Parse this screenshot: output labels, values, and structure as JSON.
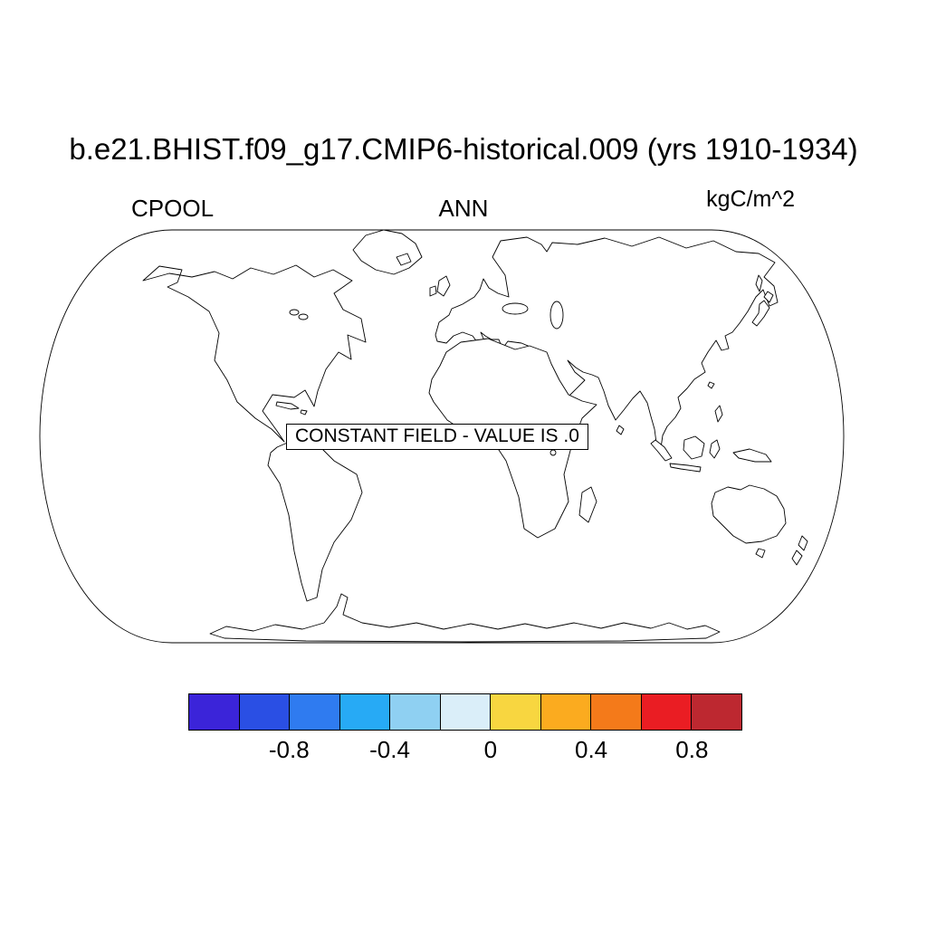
{
  "header": {
    "title": "b.e21.BHIST.f09_g17.CMIP6-historical.009 (yrs 1910-1934)",
    "variable_label": "CPOOL",
    "season_label": "ANN",
    "units_label": "kgC/m^2"
  },
  "map": {
    "annotation": "CONSTANT FIELD - VALUE IS .0"
  },
  "chart_data": {
    "type": "heatmap",
    "title": "b.e21.BHIST.f09_g17.CMIP6-historical.009 (yrs 1910-1934)",
    "variable": "CPOOL",
    "season": "ANN",
    "units": "kgC/m^2",
    "projection": "robinson-world-map",
    "field_note": "CONSTANT FIELD - VALUE IS .0",
    "constant_value": 0.0,
    "colorbar": {
      "levels": [
        -1.0,
        -0.8,
        -0.6,
        -0.4,
        -0.2,
        0.0,
        0.2,
        0.4,
        0.6,
        0.8
      ],
      "tick_labels": [
        "-0.8",
        "-0.4",
        "0",
        "0.4",
        "0.8"
      ],
      "tick_positions": [
        0.18182,
        0.36364,
        0.54545,
        0.72727,
        0.90909
      ],
      "colors": [
        "#3b24d9",
        "#2a4fe4",
        "#2f7bf0",
        "#27aaf5",
        "#8fd0f2",
        "#daeef9",
        "#f8d640",
        "#fbab1f",
        "#f47a1a",
        "#ea1d23",
        "#bd2830"
      ]
    }
  }
}
